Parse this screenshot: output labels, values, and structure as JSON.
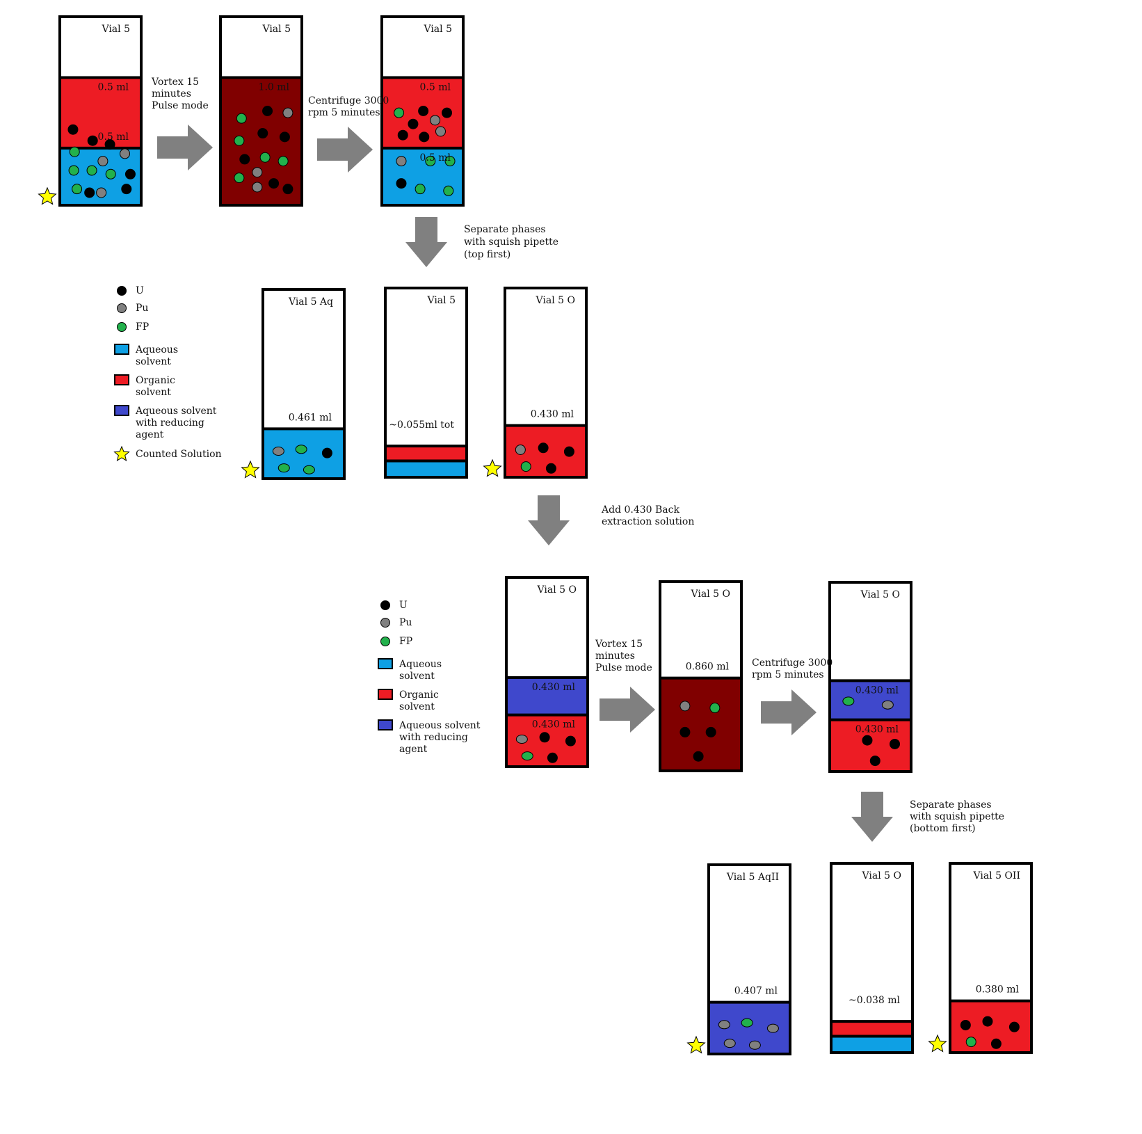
{
  "colors": {
    "aqueous": "#0ea0e4",
    "organic": "#ed1c24",
    "reducing": "#3f48cc",
    "mixed": "#800000",
    "U": "#000000",
    "Pu": "#808080",
    "FP": "#22b14c",
    "arrow": "#808080",
    "star": "#ffff00"
  },
  "icons": {
    "arrow": "arrow-icon",
    "star": "star-icon"
  },
  "step_labels": {
    "vortex_1": [
      "Vortex 15",
      "minutes",
      "Pulse mode"
    ],
    "centrifuge_1": [
      "Centrifuge 3000",
      "rpm 5 minutes"
    ],
    "separate_1": [
      "Separate phases",
      "with squish pipette",
      "(top first)"
    ],
    "add_back": [
      "Add 0.430 Back",
      "extraction solution"
    ],
    "vortex_2": [
      "Vortex 15",
      "minutes",
      "Pulse mode"
    ],
    "centrifuge_2": [
      "Centrifuge 3000",
      "rpm 5 minutes"
    ],
    "separate_2": [
      "Separate phases",
      "with squish pipette",
      "(bottom first)"
    ]
  },
  "legend_1": [
    {
      "kind": "dot",
      "color": "U",
      "text": [
        "U"
      ]
    },
    {
      "kind": "dot",
      "color": "Pu",
      "text": [
        "Pu"
      ]
    },
    {
      "kind": "dot",
      "color": "FP",
      "text": [
        "FP"
      ]
    },
    {
      "kind": "box",
      "color": "aqueous",
      "text": [
        "Aqueous",
        "solvent"
      ]
    },
    {
      "kind": "box",
      "color": "organic",
      "text": [
        "Organic",
        "solvent"
      ]
    },
    {
      "kind": "box",
      "color": "reducing",
      "text": [
        "Aqueous solvent",
        "with reducing",
        "agent"
      ]
    },
    {
      "kind": "star",
      "color": "star",
      "text": [
        "Counted Solution"
      ]
    }
  ],
  "legend_2": [
    {
      "kind": "dot",
      "color": "U",
      "text": [
        "U"
      ]
    },
    {
      "kind": "dot",
      "color": "Pu",
      "text": [
        "Pu"
      ]
    },
    {
      "kind": "dot",
      "color": "FP",
      "text": [
        "FP"
      ]
    },
    {
      "kind": "box",
      "color": "aqueous",
      "text": [
        "Aqueous",
        "solvent"
      ]
    },
    {
      "kind": "box",
      "color": "organic",
      "text": [
        "Organic",
        "solvent"
      ]
    },
    {
      "kind": "box",
      "color": "reducing",
      "text": [
        "Aqueous solvent",
        "with reducing",
        "agent"
      ]
    }
  ],
  "vials": [
    {
      "id": "v1",
      "title": "Vial 5",
      "star": true,
      "layers": [
        {
          "color": "organic",
          "frac": 0.38,
          "labels": [
            "0.5 ml",
            "0.5 ml"
          ]
        },
        {
          "color": "aqueous",
          "frac": 0.3
        }
      ],
      "particles": [
        "FP",
        "U",
        "U",
        "Pu",
        "FP",
        "FP",
        "Pu",
        "FP",
        "U",
        "FP",
        "U",
        "Pu",
        "U",
        "U"
      ]
    },
    {
      "id": "v2",
      "title": "Vial 5",
      "star": false,
      "layers": [
        {
          "color": "mixed",
          "frac": 0.68,
          "labels": [
            "1.0 ml"
          ]
        }
      ],
      "particles": [
        "U",
        "Pu",
        "FP",
        "U",
        "U",
        "FP",
        "U",
        "FP",
        "FP",
        "Pu",
        "FP",
        "U",
        "Pu",
        "U"
      ]
    },
    {
      "id": "v3",
      "title": "Vial 5",
      "star": false,
      "layers": [
        {
          "color": "organic",
          "frac": 0.38,
          "labels": [
            "0.5 ml"
          ]
        },
        {
          "color": "aqueous",
          "frac": 0.3,
          "labels": [
            "0.5 ml"
          ]
        }
      ],
      "particles": [
        "FP",
        "U",
        "U",
        "U",
        "Pu",
        "U",
        "U",
        "Pu",
        "Pu",
        "FP",
        "FP",
        "U",
        "FP",
        "FP"
      ]
    },
    {
      "id": "v4",
      "title": "Vial 5 Aq",
      "star": true,
      "layers": [
        {
          "color": "aqueous",
          "frac": 0.26
        }
      ],
      "volume": "0.461 ml",
      "particles": [
        "Pu",
        "FP",
        "U",
        "FP",
        "FP"
      ]
    },
    {
      "id": "v5",
      "title": "Vial 5",
      "star": false,
      "layers": [
        {
          "color": "organic",
          "frac": 0.08
        },
        {
          "color": "aqueous",
          "frac": 0.08
        }
      ],
      "volume": "~0.055ml tot",
      "particles": []
    },
    {
      "id": "v6",
      "title": "Vial 5 O",
      "star": true,
      "layers": [
        {
          "color": "organic",
          "frac": 0.27
        }
      ],
      "volume": "0.430 ml",
      "particles": [
        "Pu",
        "U",
        "U",
        "FP",
        "U"
      ]
    },
    {
      "id": "v7",
      "title": "Vial 5 O",
      "star": false,
      "layers": [
        {
          "color": "reducing",
          "frac": 0.2,
          "labels": [
            "0.430 ml"
          ]
        },
        {
          "color": "organic",
          "frac": 0.27,
          "labels": [
            "0.430 ml"
          ]
        }
      ],
      "particles": [
        "Pu",
        "U",
        "U",
        "FP",
        "U"
      ]
    },
    {
      "id": "v8",
      "title": "Vial 5 O",
      "star": false,
      "layers": [
        {
          "color": "mixed",
          "frac": 0.49
        }
      ],
      "volume": "0.860 ml",
      "particles": [
        "Pu",
        "FP",
        "U",
        "U",
        "U"
      ]
    },
    {
      "id": "v9",
      "title": "Vial 5 O",
      "star": false,
      "layers": [
        {
          "color": "reducing",
          "frac": 0.21,
          "labels": [
            "0.430 ml"
          ]
        },
        {
          "color": "organic",
          "frac": 0.27,
          "labels": [
            "0.430 ml"
          ]
        }
      ],
      "particles": [
        "FP",
        "Pu",
        "U",
        "U",
        "U"
      ]
    },
    {
      "id": "v10",
      "title": "Vial 5 AqII",
      "star": true,
      "layers": [
        {
          "color": "reducing",
          "frac": 0.27
        }
      ],
      "volume": "0.407 ml",
      "particles": [
        "Pu",
        "FP",
        "Pu",
        "Pu",
        "Pu"
      ]
    },
    {
      "id": "v11",
      "title": "Vial 5 O",
      "star": false,
      "layers": [
        {
          "color": "organic",
          "frac": 0.08
        },
        {
          "color": "aqueous",
          "frac": 0.08
        }
      ],
      "volume": "~0.038 ml",
      "particles": []
    },
    {
      "id": "v12",
      "title": "Vial 5 OII",
      "star": true,
      "layers": [
        {
          "color": "organic",
          "frac": 0.27
        }
      ],
      "volume": "0.380 ml",
      "particles": [
        "U",
        "U",
        "U",
        "FP",
        "U"
      ]
    }
  ]
}
